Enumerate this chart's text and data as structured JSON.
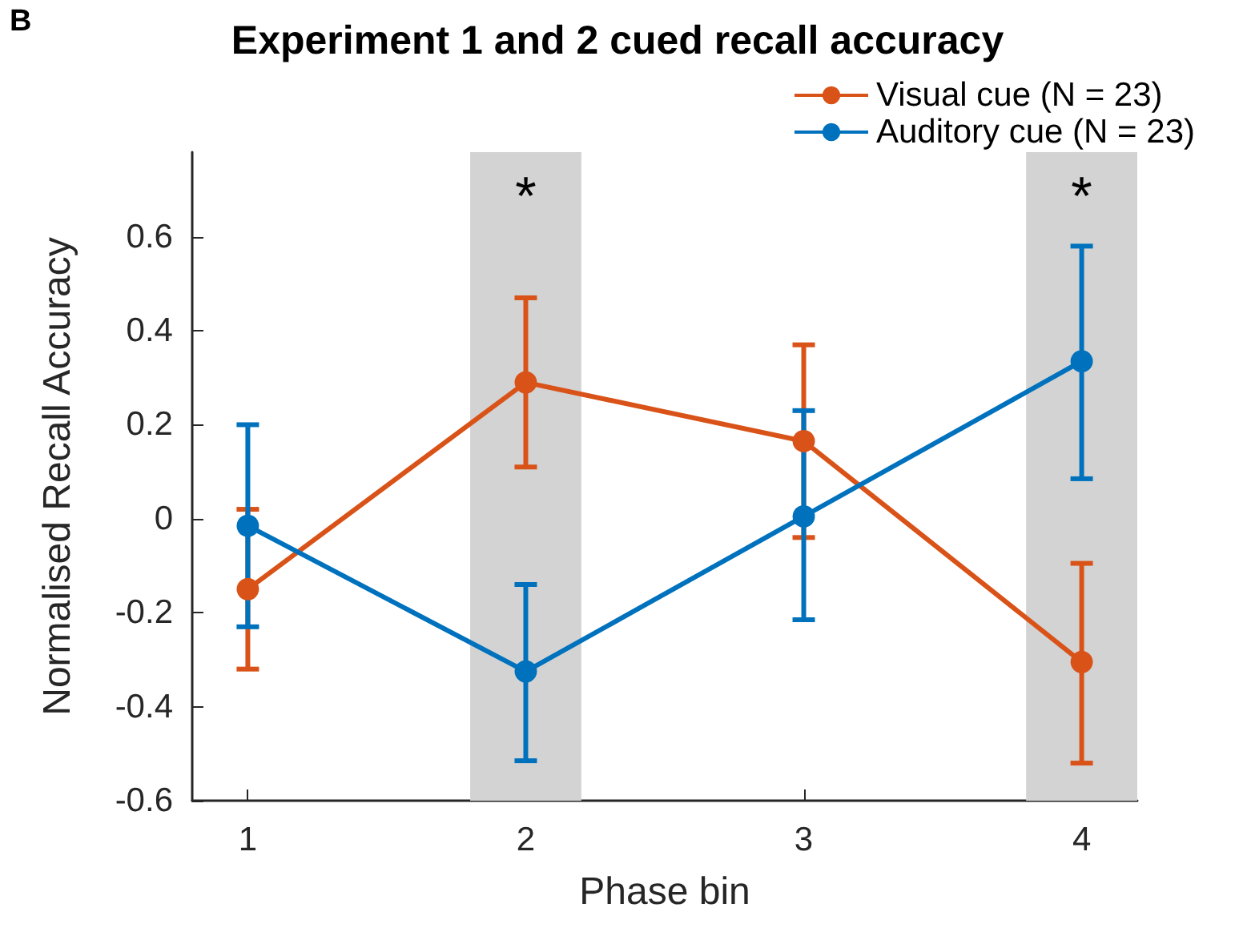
{
  "chart_data": {
    "type": "line",
    "title": "Experiment 1 and 2 cued recall accuracy",
    "xlabel": "Phase bin",
    "ylabel": "Normalised Recall Accuracy",
    "x": [
      1,
      2,
      3,
      4
    ],
    "series": [
      {
        "name": "Visual cue (N = 23)",
        "color": "#d95319",
        "values": [
          -0.15,
          0.29,
          0.165,
          -0.305
        ],
        "errors": [
          [
            -0.32,
            0.02
          ],
          [
            0.11,
            0.47
          ],
          [
            -0.04,
            0.37
          ],
          [
            -0.52,
            -0.095
          ]
        ]
      },
      {
        "name": "Auditory cue (N = 23)",
        "color": "#0072bd",
        "values": [
          -0.015,
          -0.325,
          0.005,
          0.335
        ],
        "errors": [
          [
            -0.23,
            0.2
          ],
          [
            -0.515,
            -0.14
          ],
          [
            -0.215,
            0.23
          ],
          [
            0.085,
            0.58
          ]
        ]
      }
    ],
    "xlim": [
      0.8,
      4.2
    ],
    "xticks": [
      1,
      2,
      3,
      4
    ],
    "ylim": [
      -0.6,
      0.78
    ],
    "yticks": [
      -0.6,
      -0.4,
      -0.2,
      0,
      0.2,
      0.4,
      0.6
    ],
    "bands": [
      {
        "axis": "x",
        "from": 1.8,
        "to": 2.2,
        "color": "#d3d3d3"
      },
      {
        "axis": "x",
        "from": 3.8,
        "to": 4.2,
        "color": "#d3d3d3"
      }
    ],
    "annotations": [
      "B",
      "*",
      "*"
    ],
    "marker": "circle",
    "line_style": "solid",
    "legend": "top right",
    "grid": false
  }
}
